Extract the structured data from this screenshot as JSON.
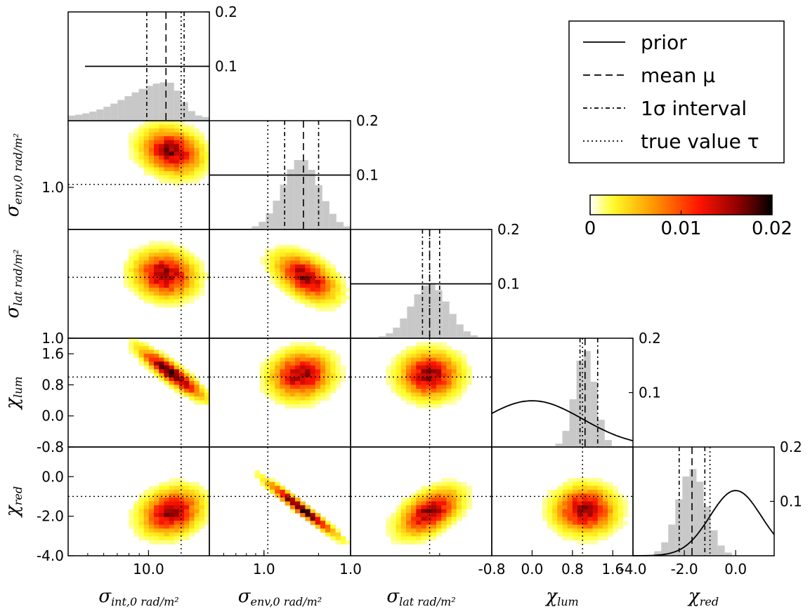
{
  "chart_data": {
    "type": "corner-plot",
    "parameters": [
      {
        "key": "sigma_int",
        "label_main": "σ",
        "label_sub": "int,0 rad/m²",
        "log": true,
        "range": [
          4.0,
          20.0
        ],
        "ticks": [
          {
            "value": 10.0,
            "label": "10.0"
          }
        ],
        "true_value": 14.5,
        "mean": 12.2,
        "interval": [
          9.8,
          15.0
        ]
      },
      {
        "key": "sigma_env",
        "label_main": "σ",
        "label_sub": "env,0 rad/m²",
        "log": true,
        "range": [
          0.5,
          3.0
        ],
        "ticks": [
          {
            "value": 1.0,
            "label": "1.0"
          }
        ],
        "true_value": 1.05,
        "mean": 1.65,
        "interval": [
          1.3,
          2.0
        ]
      },
      {
        "key": "sigma_lat",
        "label_main": "σ",
        "label_sub": "lat rad/m²",
        "log": true,
        "range": [
          1.0,
          3.0
        ],
        "ticks": [
          {
            "value": 1.0,
            "label": "1.0"
          }
        ],
        "true_value": 1.85,
        "mean": 1.85,
        "interval": [
          1.75,
          2.0
        ]
      },
      {
        "key": "chi_lum",
        "label_main": "χ",
        "label_sub": "lum",
        "log": false,
        "range": [
          -0.8,
          2.0
        ],
        "ticks": [
          {
            "value": -0.8,
            "label": "-0.8"
          },
          {
            "value": 0.0,
            "label": "0.0"
          },
          {
            "value": 0.8,
            "label": "0.8"
          },
          {
            "value": 1.6,
            "label": "1.6"
          }
        ],
        "true_value": 1.0,
        "mean": 1.05,
        "interval": [
          0.95,
          1.3
        ]
      },
      {
        "key": "chi_red",
        "label_main": "χ",
        "label_sub": "red",
        "log": false,
        "range": [
          -4.0,
          1.5
        ],
        "ticks": [
          {
            "value": -4.0,
            "label": "-4.0"
          },
          {
            "value": -2.0,
            "label": "-2.0"
          },
          {
            "value": 0.0,
            "label": "0.0"
          }
        ],
        "true_value": -1.0,
        "mean": -1.7,
        "interval": [
          -2.2,
          -1.2
        ]
      }
    ],
    "diag_ylim": [
      0,
      0.2
    ],
    "diag_yticks": [
      {
        "value": 0.2,
        "label": "0.2"
      },
      {
        "value": 0.1,
        "label": "0.1"
      }
    ],
    "priors": [
      {
        "kind": "flat",
        "value": 0.1
      },
      {
        "kind": "flat",
        "value": 0.1
      },
      {
        "kind": "flat",
        "value": 0.1
      },
      {
        "kind": "gauss",
        "mu": 0.0,
        "sigma": 1.0,
        "peak": 0.085
      },
      {
        "kind": "gauss",
        "mu": 0.0,
        "sigma": 1.0,
        "peak": 0.12
      }
    ],
    "posteriors": [
      {
        "bins": 20,
        "shape": "skew-left",
        "peak": 0.065,
        "mode": 12.5
      },
      {
        "bins": 20,
        "shape": "gauss",
        "peak": 0.13,
        "mode": 1.6,
        "width": 0.22
      },
      {
        "bins": 20,
        "shape": "gauss",
        "peak": 0.1,
        "mode": 1.85,
        "width": 0.1
      },
      {
        "bins": 20,
        "shape": "gauss",
        "peak": 0.18,
        "mode": 1.05,
        "width": 0.2
      },
      {
        "bins": 20,
        "shape": "gauss",
        "peak": 0.16,
        "mode": -1.7,
        "width": 0.55
      }
    ],
    "joint": [
      {
        "row": 1,
        "col": 0,
        "cx": 13.0,
        "cy": 1.8,
        "rho": -0.2
      },
      {
        "row": 2,
        "col": 0,
        "cx": 12.0,
        "cy": 1.9,
        "rho": -0.1
      },
      {
        "row": 2,
        "col": 1,
        "cx": 1.7,
        "cy": 1.85,
        "rho": -0.5
      },
      {
        "row": 3,
        "col": 0,
        "cx": 13.0,
        "cy": 1.1,
        "rho": -0.9
      },
      {
        "row": 3,
        "col": 1,
        "cx": 1.6,
        "cy": 1.05,
        "rho": 0.1
      },
      {
        "row": 3,
        "col": 2,
        "cx": 1.85,
        "cy": 1.05,
        "rho": 0.0
      },
      {
        "row": 4,
        "col": 0,
        "cx": 13.0,
        "cy": -1.8,
        "rho": 0.2
      },
      {
        "row": 4,
        "col": 1,
        "cx": 1.6,
        "cy": -1.6,
        "rho": -0.97
      },
      {
        "row": 4,
        "col": 2,
        "cx": 1.85,
        "cy": -1.8,
        "rho": 0.5
      },
      {
        "row": 4,
        "col": 3,
        "cx": 1.05,
        "cy": -1.7,
        "rho": 0.0
      }
    ],
    "legend": {
      "position": "top-right",
      "entries": [
        {
          "style": "solid",
          "label": "prior"
        },
        {
          "style": "dashed",
          "label": "mean μ"
        },
        {
          "style": "dashdot",
          "label": "1σ interval"
        },
        {
          "style": "dotted",
          "label": "true value τ"
        }
      ]
    },
    "colorbar": {
      "colors": [
        "#ffffff",
        "#ffff00",
        "#ff8c00",
        "#ff0000",
        "#8b0000",
        "#000000"
      ],
      "ticks": [
        {
          "value": 0,
          "label": "0"
        },
        {
          "value": 0.01,
          "label": "0.01"
        },
        {
          "value": 0.02,
          "label": "0.02"
        }
      ],
      "range": [
        0,
        0.02
      ]
    }
  }
}
